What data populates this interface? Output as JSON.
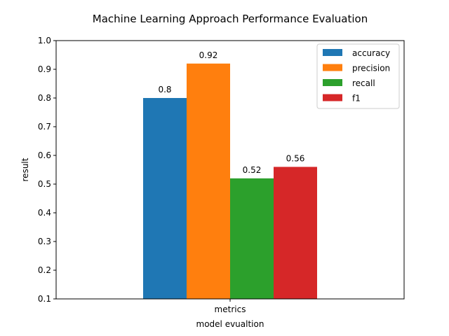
{
  "chart_data": {
    "type": "bar",
    "title": "Machine Learning Approach Performance Evaluation",
    "xlabel": "model evualtion",
    "ylabel": "result",
    "categories": [
      "metrics"
    ],
    "series": [
      {
        "name": "accuracy",
        "values": [
          0.8
        ],
        "label": "0.8",
        "color": "#1f77b4"
      },
      {
        "name": "precision",
        "values": [
          0.92
        ],
        "label": "0.92",
        "color": "#ff7f0e"
      },
      {
        "name": "recall",
        "values": [
          0.52
        ],
        "label": "0.52",
        "color": "#2ca02c"
      },
      {
        "name": "f1",
        "values": [
          0.56
        ],
        "label": "0.56",
        "color": "#d62728"
      }
    ],
    "ylim": [
      0.1,
      1.0
    ],
    "yticks": [
      "0.1",
      "0.2",
      "0.3",
      "0.4",
      "0.5",
      "0.6",
      "0.7",
      "0.8",
      "0.9",
      "1.0"
    ],
    "grid": false,
    "legend_position": "top-right"
  }
}
